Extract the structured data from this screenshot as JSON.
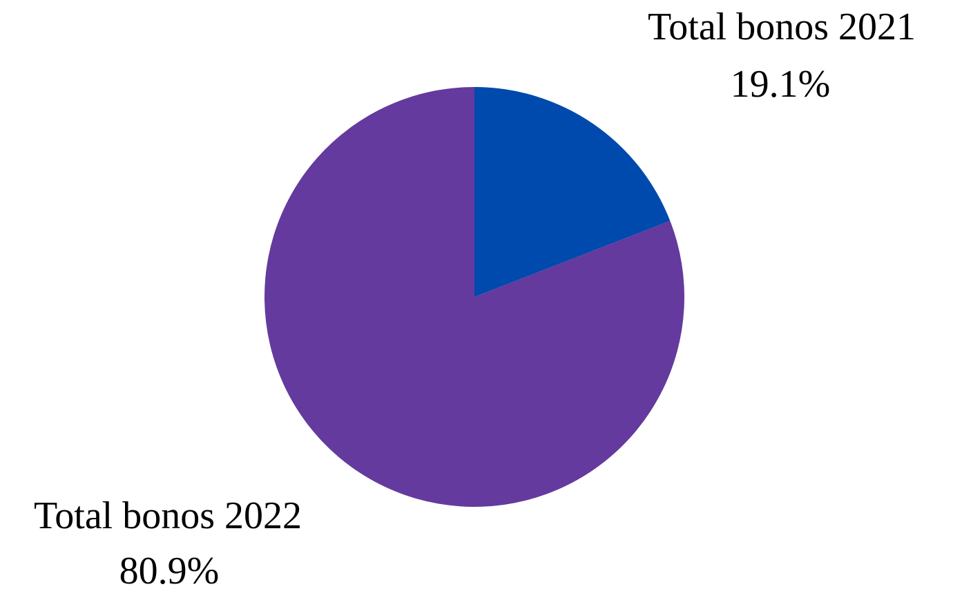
{
  "chart_data": {
    "type": "pie",
    "title": "",
    "slices": [
      {
        "label": "Total bonos 2021",
        "value": 19.1,
        "value_label": "19.1%",
        "color": "#004aad"
      },
      {
        "label": "Total bonos 2022",
        "value": 80.9,
        "value_label": "80.9%",
        "color": "#643a9e"
      }
    ],
    "start_angle_deg": 0,
    "direction": "clockwise",
    "legend": "none"
  }
}
